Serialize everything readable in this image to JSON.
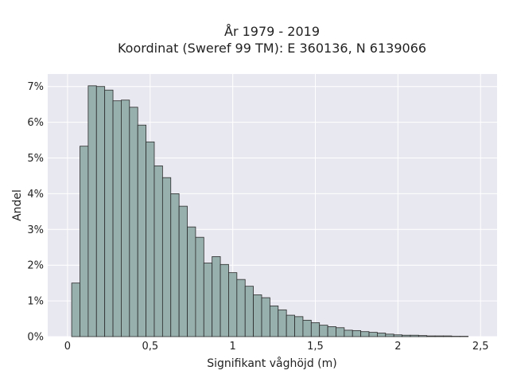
{
  "chart_data": {
    "type": "bar",
    "title_lines": [
      "År 1979 - 2019",
      "Koordinat (Sweref 99 TM): E 360136, N 6139066"
    ],
    "xlabel": "Signifikant våghöjd (m)",
    "ylabel": "Andel",
    "xlim": [
      -0.12,
      2.6
    ],
    "ylim": [
      0,
      7.35
    ],
    "x_ticks": [
      {
        "value": 0,
        "label": "0"
      },
      {
        "value": 0.5,
        "label": "0,5"
      },
      {
        "value": 1,
        "label": "1"
      },
      {
        "value": 1.5,
        "label": "1,5"
      },
      {
        "value": 2,
        "label": "2"
      },
      {
        "value": 2.5,
        "label": "2,5"
      }
    ],
    "y_ticks": [
      {
        "value": 0,
        "label": "0%"
      },
      {
        "value": 1,
        "label": "1%"
      },
      {
        "value": 2,
        "label": "2%"
      },
      {
        "value": 3,
        "label": "3%"
      },
      {
        "value": 4,
        "label": "4%"
      },
      {
        "value": 5,
        "label": "5%"
      },
      {
        "value": 6,
        "label": "6%"
      },
      {
        "value": 7,
        "label": "7%"
      }
    ],
    "grid": true,
    "bin_start": 0.025,
    "bin_width": 0.05,
    "values": [
      1.5,
      5.33,
      7.02,
      7.0,
      6.9,
      6.6,
      6.62,
      6.42,
      5.92,
      5.45,
      4.78,
      4.45,
      4.0,
      3.65,
      3.07,
      2.78,
      2.06,
      2.24,
      2.02,
      1.79,
      1.6,
      1.41,
      1.17,
      1.09,
      0.86,
      0.75,
      0.6,
      0.56,
      0.46,
      0.39,
      0.32,
      0.28,
      0.25,
      0.18,
      0.17,
      0.14,
      0.12,
      0.1,
      0.07,
      0.05,
      0.04,
      0.04,
      0.03,
      0.02,
      0.02,
      0.02,
      0.01,
      0.01
    ],
    "colors": {
      "bar_fill": "#97b0ae",
      "bar_stroke": "#2b2b2b",
      "plot_bg": "#e8e8f0",
      "grid": "#ffffff"
    }
  }
}
